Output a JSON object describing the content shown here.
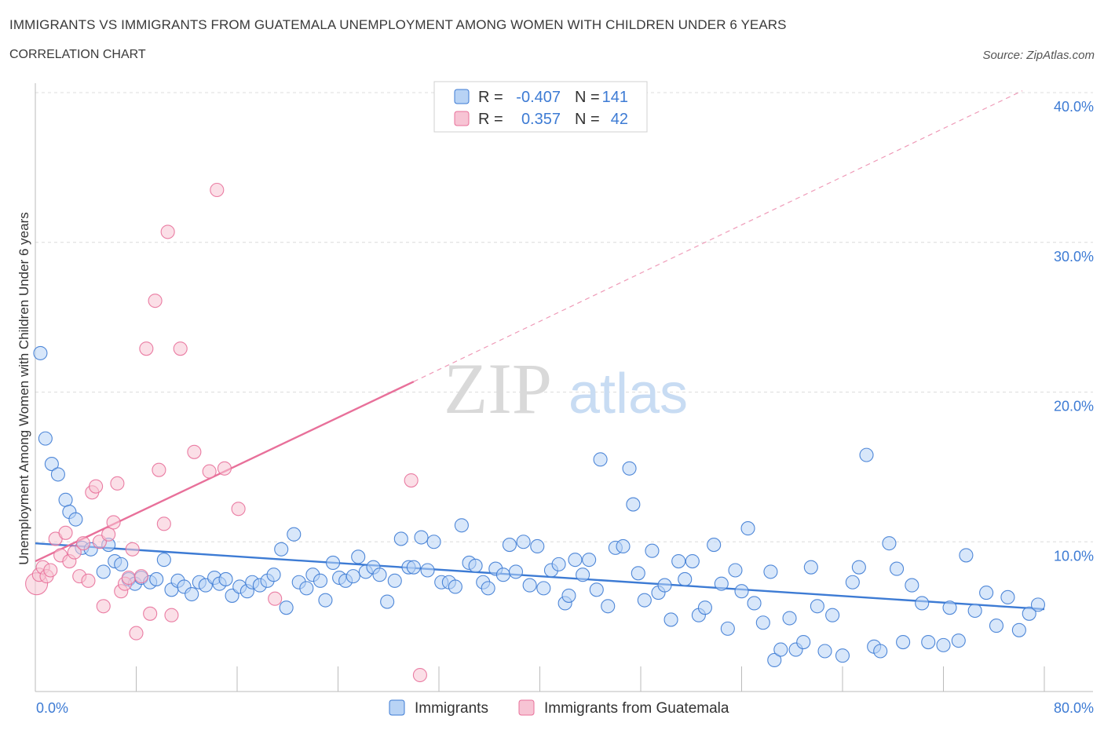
{
  "header": {
    "title": "IMMIGRANTS VS IMMIGRANTS FROM GUATEMALA UNEMPLOYMENT AMONG WOMEN WITH CHILDREN UNDER 6 YEARS",
    "subtitle": "CORRELATION CHART",
    "source": "Source: ZipAtlas.com"
  },
  "colors": {
    "blue": "#3d7bd4",
    "blue_fill": "#b8d3f5",
    "pink": "#e8709a",
    "pink_fill": "#f7c4d4"
  },
  "chart_data": {
    "type": "scatter",
    "ylabel": "Unemployment Among Women with Children Under 6 years",
    "xlim": [
      0,
      80
    ],
    "ylim": [
      0,
      40
    ],
    "x_tick_labels": [
      "0.0%",
      "80.0%"
    ],
    "y_ticks": [
      10,
      20,
      30,
      40
    ],
    "y_tick_labels": [
      "10.0%",
      "20.0%",
      "30.0%",
      "40.0%"
    ],
    "grid": true,
    "legend": {
      "position": "top-center",
      "rows": [
        {
          "r_label": "R =",
          "r_value": "-0.407",
          "n_label": "N =",
          "n_value": "141"
        },
        {
          "r_label": "R =",
          "r_value": "0.357",
          "n_label": "N =",
          "n_value": "42"
        }
      ]
    },
    "bottom_legend": [
      "Immigrants",
      "Immigrants from Guatemala"
    ],
    "watermark": {
      "zip": "ZIP",
      "atlas": "atlas"
    },
    "series": [
      {
        "name": "Immigrants",
        "color": "#3d7bd4",
        "trend": {
          "x": [
            0,
            80
          ],
          "y": [
            9.9,
            5.5
          ]
        },
        "points": [
          [
            0.4,
            22.6
          ],
          [
            0.8,
            16.9
          ],
          [
            1.3,
            15.2
          ],
          [
            1.8,
            14.5
          ],
          [
            2.4,
            12.8
          ],
          [
            2.7,
            12.0
          ],
          [
            3.2,
            11.5
          ],
          [
            3.7,
            9.6
          ],
          [
            4.4,
            9.5
          ],
          [
            5.4,
            8.0
          ],
          [
            5.8,
            9.8
          ],
          [
            6.3,
            8.7
          ],
          [
            6.8,
            8.5
          ],
          [
            7.4,
            7.5
          ],
          [
            7.9,
            7.2
          ],
          [
            8.4,
            7.6
          ],
          [
            9.1,
            7.3
          ],
          [
            9.6,
            7.5
          ],
          [
            10.2,
            8.8
          ],
          [
            10.8,
            6.8
          ],
          [
            11.3,
            7.4
          ],
          [
            11.8,
            7.0
          ],
          [
            12.4,
            6.5
          ],
          [
            13.0,
            7.3
          ],
          [
            13.5,
            7.1
          ],
          [
            14.2,
            7.6
          ],
          [
            14.6,
            7.2
          ],
          [
            15.1,
            7.5
          ],
          [
            15.6,
            6.4
          ],
          [
            16.2,
            7.0
          ],
          [
            16.8,
            6.7
          ],
          [
            17.2,
            7.3
          ],
          [
            17.8,
            7.1
          ],
          [
            18.4,
            7.4
          ],
          [
            18.9,
            7.8
          ],
          [
            19.5,
            9.5
          ],
          [
            19.9,
            5.6
          ],
          [
            20.5,
            10.5
          ],
          [
            20.9,
            7.3
          ],
          [
            21.5,
            6.9
          ],
          [
            22.0,
            7.8
          ],
          [
            22.6,
            7.4
          ],
          [
            23.0,
            6.1
          ],
          [
            23.6,
            8.6
          ],
          [
            24.1,
            7.6
          ],
          [
            24.6,
            7.4
          ],
          [
            25.2,
            7.7
          ],
          [
            25.6,
            9.0
          ],
          [
            26.2,
            8.0
          ],
          [
            26.8,
            8.3
          ],
          [
            27.3,
            7.8
          ],
          [
            27.9,
            6.0
          ],
          [
            28.5,
            7.4
          ],
          [
            29.0,
            10.2
          ],
          [
            29.6,
            8.3
          ],
          [
            30.0,
            8.3
          ],
          [
            30.6,
            10.3
          ],
          [
            31.1,
            8.1
          ],
          [
            31.6,
            10.0
          ],
          [
            32.2,
            7.3
          ],
          [
            32.8,
            7.3
          ],
          [
            33.3,
            7.0
          ],
          [
            33.8,
            11.1
          ],
          [
            34.4,
            8.6
          ],
          [
            34.9,
            8.4
          ],
          [
            35.5,
            7.3
          ],
          [
            35.9,
            6.9
          ],
          [
            36.5,
            8.2
          ],
          [
            37.1,
            7.8
          ],
          [
            37.6,
            9.8
          ],
          [
            38.1,
            8.0
          ],
          [
            38.7,
            10.0
          ],
          [
            39.2,
            7.1
          ],
          [
            39.8,
            9.7
          ],
          [
            40.3,
            6.9
          ],
          [
            40.9,
            8.1
          ],
          [
            41.5,
            8.5
          ],
          [
            42.0,
            5.9
          ],
          [
            42.3,
            6.4
          ],
          [
            42.8,
            8.8
          ],
          [
            43.4,
            7.8
          ],
          [
            43.9,
            8.8
          ],
          [
            44.5,
            6.8
          ],
          [
            44.8,
            15.5
          ],
          [
            45.4,
            5.7
          ],
          [
            46.0,
            9.6
          ],
          [
            46.6,
            9.7
          ],
          [
            47.1,
            14.9
          ],
          [
            47.4,
            12.5
          ],
          [
            47.8,
            7.9
          ],
          [
            48.3,
            6.1
          ],
          [
            48.9,
            9.4
          ],
          [
            49.4,
            6.6
          ],
          [
            49.9,
            7.1
          ],
          [
            50.4,
            4.8
          ],
          [
            51.0,
            8.7
          ],
          [
            51.5,
            7.5
          ],
          [
            52.1,
            8.7
          ],
          [
            52.6,
            5.1
          ],
          [
            53.1,
            5.6
          ],
          [
            53.8,
            9.8
          ],
          [
            54.4,
            7.2
          ],
          [
            54.9,
            4.2
          ],
          [
            55.5,
            8.1
          ],
          [
            56.0,
            6.7
          ],
          [
            56.5,
            10.9
          ],
          [
            57.0,
            5.9
          ],
          [
            57.7,
            4.6
          ],
          [
            58.3,
            8.0
          ],
          [
            58.6,
            2.1
          ],
          [
            59.1,
            2.8
          ],
          [
            59.8,
            4.9
          ],
          [
            60.3,
            2.8
          ],
          [
            60.9,
            3.3
          ],
          [
            61.5,
            8.3
          ],
          [
            62.0,
            5.7
          ],
          [
            62.6,
            2.7
          ],
          [
            63.2,
            5.1
          ],
          [
            64.0,
            2.4
          ],
          [
            64.8,
            7.3
          ],
          [
            65.3,
            8.3
          ],
          [
            65.9,
            15.8
          ],
          [
            66.5,
            3.0
          ],
          [
            67.0,
            2.7
          ],
          [
            67.7,
            9.9
          ],
          [
            68.3,
            8.2
          ],
          [
            68.8,
            3.3
          ],
          [
            69.5,
            7.1
          ],
          [
            70.3,
            5.9
          ],
          [
            70.8,
            3.3
          ],
          [
            72.0,
            3.1
          ],
          [
            72.5,
            5.6
          ],
          [
            73.2,
            3.4
          ],
          [
            73.8,
            9.1
          ],
          [
            74.5,
            5.4
          ],
          [
            75.4,
            6.6
          ],
          [
            76.2,
            4.4
          ],
          [
            77.1,
            6.3
          ],
          [
            78.0,
            4.1
          ],
          [
            78.8,
            5.2
          ],
          [
            79.5,
            5.8
          ]
        ]
      },
      {
        "name": "Immigrants from Guatemala",
        "color": "#e8709a",
        "trend": {
          "x": [
            0,
            30
          ],
          "y": [
            8.7,
            20.7
          ]
        },
        "trend_extension": {
          "x": [
            30,
            80
          ],
          "y": [
            20.7,
            40.7
          ]
        },
        "points": [
          [
            0.1,
            7.2
          ],
          [
            0.3,
            7.8
          ],
          [
            0.6,
            8.3
          ],
          [
            0.9,
            7.7
          ],
          [
            1.2,
            8.1
          ],
          [
            1.6,
            10.2
          ],
          [
            2.0,
            9.1
          ],
          [
            2.4,
            10.6
          ],
          [
            2.7,
            8.7
          ],
          [
            3.1,
            9.3
          ],
          [
            3.5,
            7.7
          ],
          [
            3.8,
            9.9
          ],
          [
            4.2,
            7.4
          ],
          [
            4.5,
            13.3
          ],
          [
            4.8,
            13.7
          ],
          [
            5.1,
            10.0
          ],
          [
            5.4,
            5.7
          ],
          [
            5.8,
            10.5
          ],
          [
            6.2,
            11.3
          ],
          [
            6.5,
            13.9
          ],
          [
            6.8,
            6.7
          ],
          [
            7.1,
            7.2
          ],
          [
            7.4,
            7.6
          ],
          [
            7.7,
            9.5
          ],
          [
            8.0,
            3.9
          ],
          [
            8.4,
            7.7
          ],
          [
            8.8,
            22.9
          ],
          [
            9.1,
            5.2
          ],
          [
            9.5,
            26.1
          ],
          [
            9.8,
            14.8
          ],
          [
            10.2,
            11.2
          ],
          [
            10.5,
            30.7
          ],
          [
            10.8,
            5.1
          ],
          [
            11.5,
            22.9
          ],
          [
            12.6,
            16.0
          ],
          [
            13.8,
            14.7
          ],
          [
            14.4,
            33.5
          ],
          [
            15.0,
            14.9
          ],
          [
            16.1,
            12.2
          ],
          [
            19.0,
            6.2
          ],
          [
            29.8,
            14.1
          ],
          [
            30.5,
            1.1
          ]
        ]
      }
    ]
  }
}
